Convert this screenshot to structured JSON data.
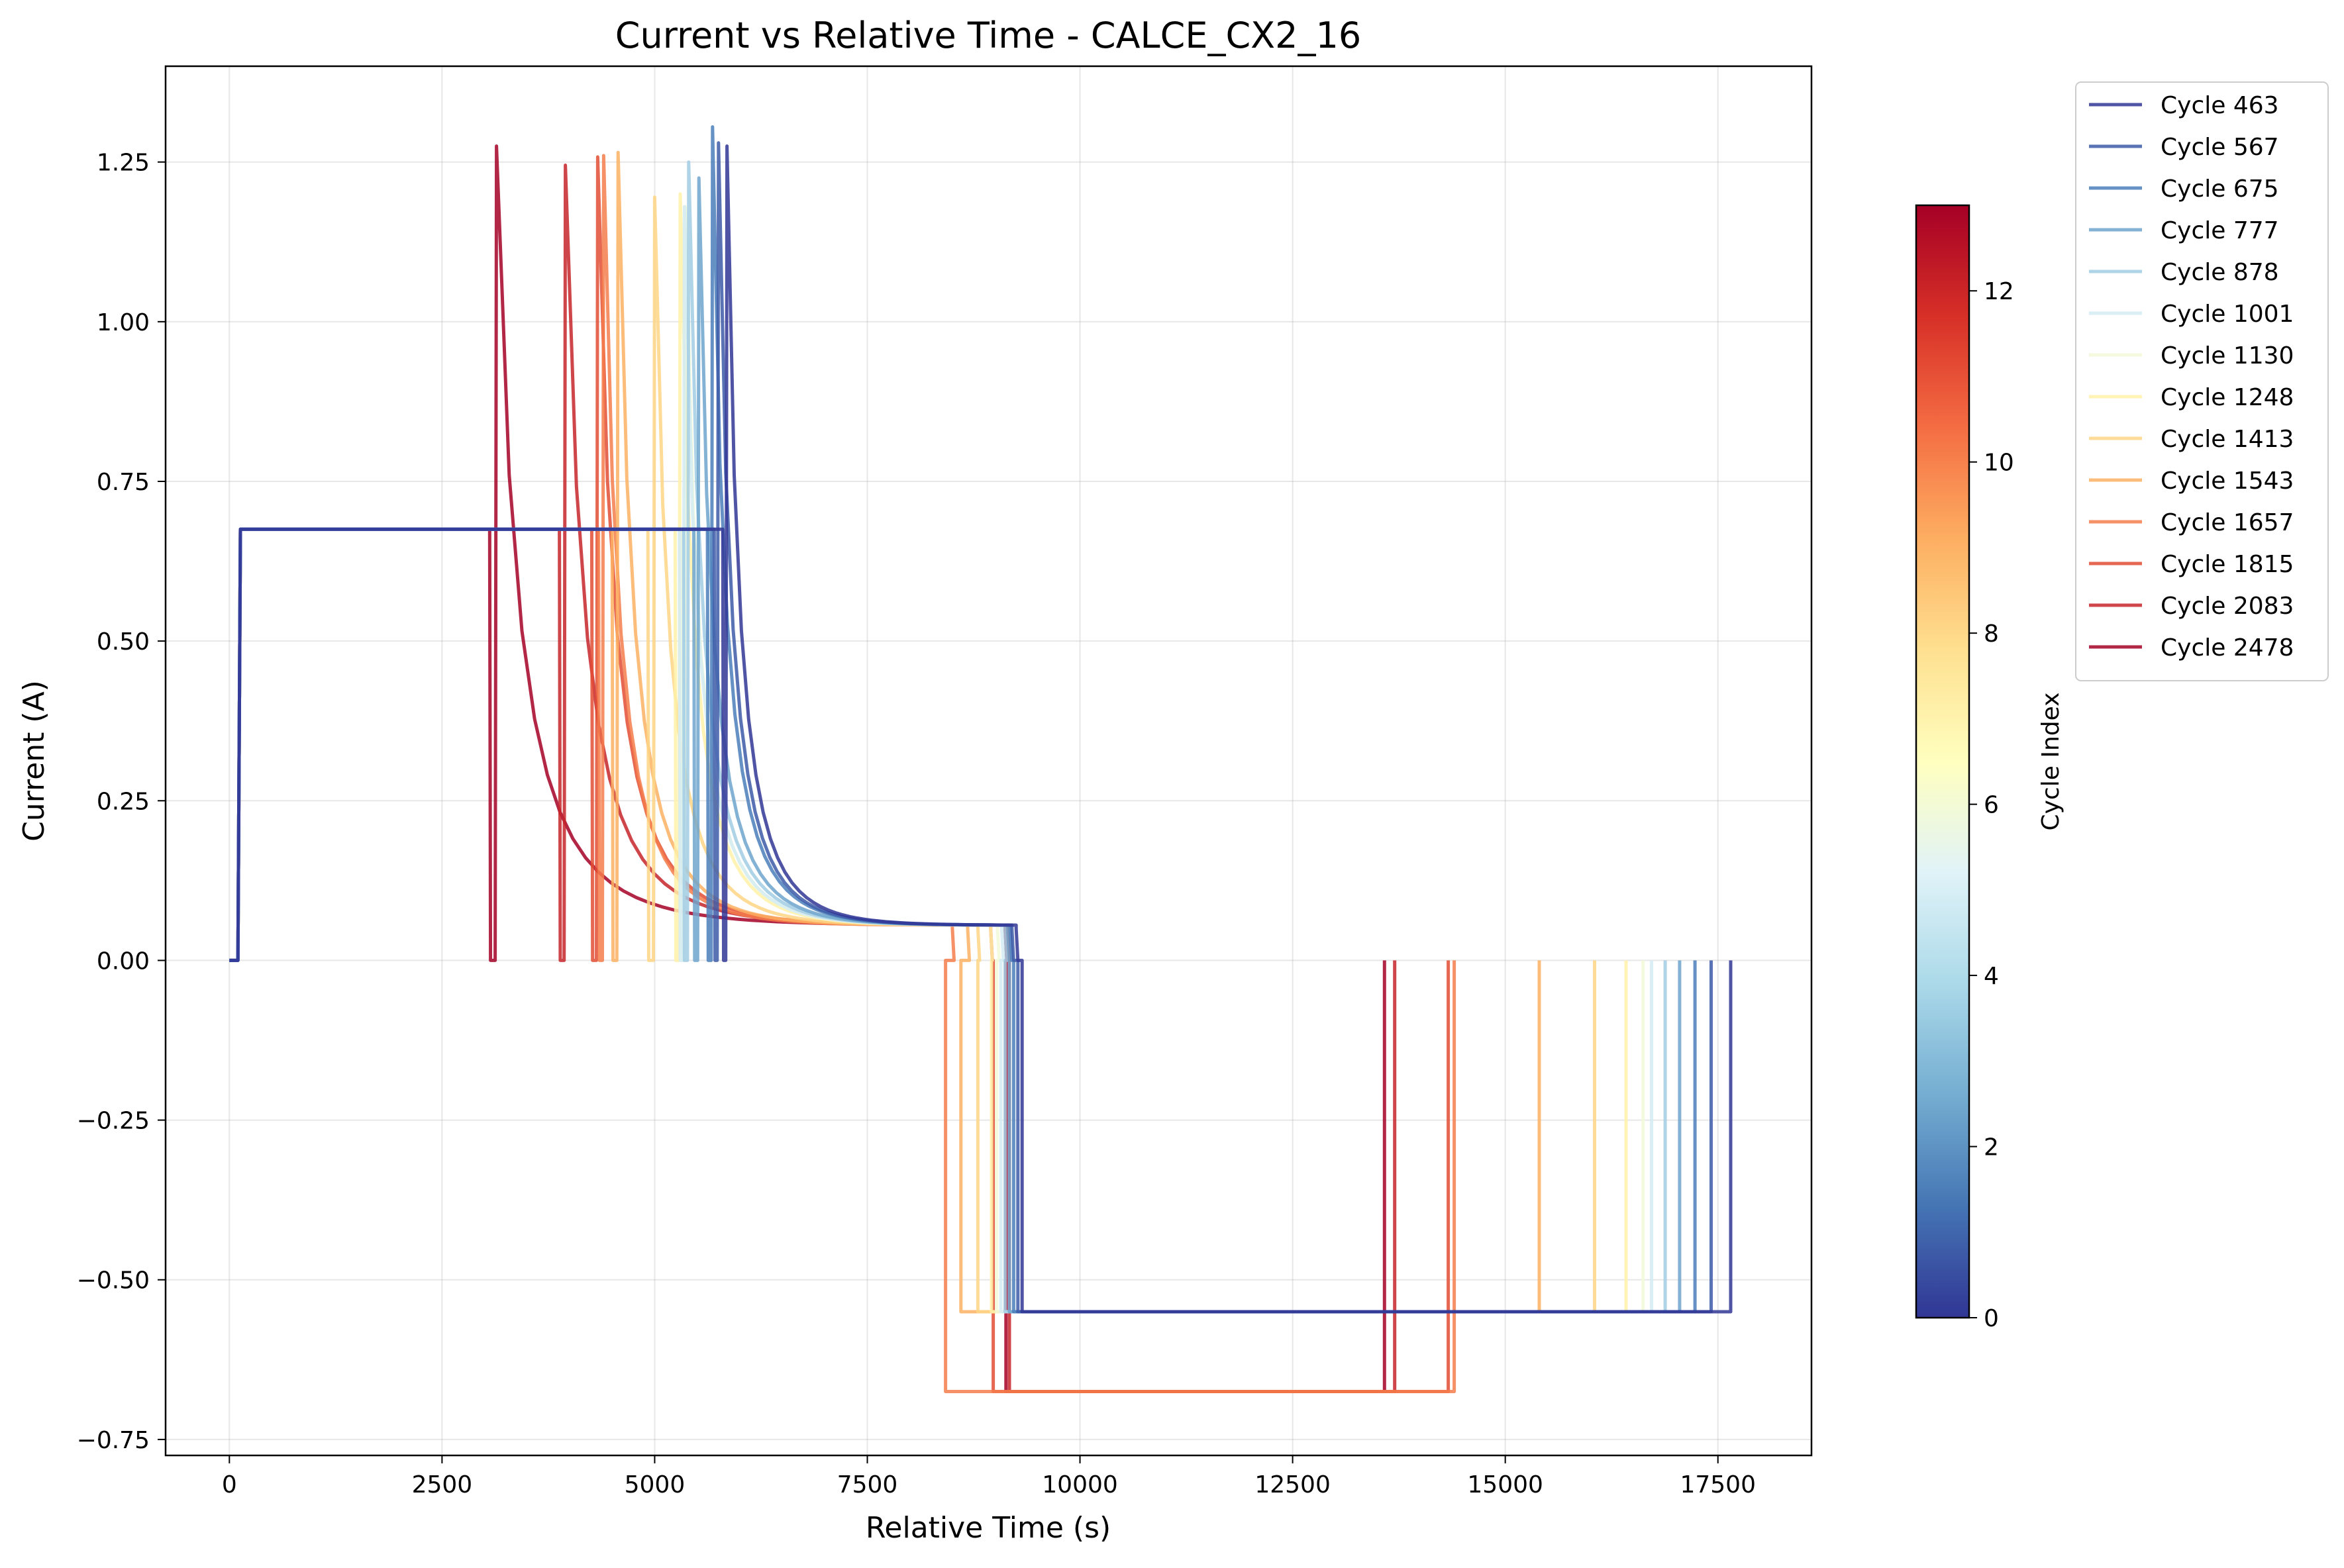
{
  "chart_data": {
    "type": "line",
    "title": "Current vs Relative Time - CALCE_CX2_16",
    "xlabel": "Relative Time (s)",
    "ylabel": "Current (A)",
    "xlim": [
      -750,
      18600
    ],
    "ylim": [
      -0.775,
      1.4
    ],
    "xticks": [
      0,
      2500,
      5000,
      7500,
      10000,
      12500,
      15000,
      17500
    ],
    "xtick_labels": [
      "0",
      "2500",
      "5000",
      "7500",
      "10000",
      "12500",
      "15000",
      "17500"
    ],
    "yticks": [
      -0.75,
      -0.5,
      -0.25,
      0.0,
      0.25,
      0.5,
      0.75,
      1.0,
      1.25
    ],
    "ytick_labels": [
      "−0.75",
      "−0.50",
      "−0.25",
      "0.00",
      "0.25",
      "0.50",
      "0.75",
      "1.00",
      "1.25"
    ],
    "grid": true,
    "legend_position": "outside-top-right",
    "colorbar": {
      "label": "Cycle Index",
      "range": [
        0,
        13
      ],
      "ticks": [
        0,
        2,
        4,
        6,
        8,
        10,
        12
      ],
      "tick_labels": [
        "0",
        "2",
        "4",
        "6",
        "8",
        "10",
        "12"
      ]
    },
    "charge_current": 0.675,
    "series": [
      {
        "name": "Cycle 463",
        "index": 0,
        "color": "#313695",
        "cc_end": 5800,
        "peak_t": 5850,
        "peak": 1.275,
        "cv_end": 9250,
        "dch_start": 9320,
        "dch_current": -0.55,
        "dch_end": 17650
      },
      {
        "name": "Cycle 567",
        "index": 1,
        "color": "#3d5ba8",
        "cc_end": 5700,
        "peak_t": 5750,
        "peak": 1.28,
        "cv_end": 9200,
        "dch_start": 9270,
        "dch_current": -0.55,
        "dch_end": 17420
      },
      {
        "name": "Cycle 675",
        "index": 2,
        "color": "#4a7ebb",
        "cc_end": 5620,
        "peak_t": 5680,
        "peak": 1.305,
        "cv_end": 9180,
        "dch_start": 9220,
        "dch_current": -0.55,
        "dch_end": 17230
      },
      {
        "name": "Cycle 777",
        "index": 3,
        "color": "#6fa5cd",
        "cc_end": 5460,
        "peak_t": 5520,
        "peak": 1.225,
        "cv_end": 9150,
        "dch_start": 9170,
        "dch_current": -0.55,
        "dch_end": 17050
      },
      {
        "name": "Cycle 878",
        "index": 4,
        "color": "#a2cde3",
        "cc_end": 5340,
        "peak_t": 5400,
        "peak": 1.25,
        "cv_end": 9120,
        "dch_start": 9120,
        "dch_current": -0.55,
        "dch_end": 16880
      },
      {
        "name": "Cycle 1001",
        "index": 5,
        "color": "#d3ebf3",
        "cc_end": 5290,
        "peak_t": 5350,
        "peak": 1.18,
        "cv_end": 9080,
        "dch_start": 9070,
        "dch_current": -0.55,
        "dch_end": 16720
      },
      {
        "name": "Cycle 1130",
        "index": 6,
        "color": "#f1f9d7",
        "cc_end": 5300,
        "peak_t": 5360,
        "peak": 1.18,
        "cv_end": 9030,
        "dch_start": 9020,
        "dch_current": -0.55,
        "dch_end": 16620
      },
      {
        "name": "Cycle 1248",
        "index": 7,
        "color": "#fff1a8",
        "cc_end": 5240,
        "peak_t": 5300,
        "peak": 1.2,
        "cv_end": 8950,
        "dch_start": 8960,
        "dch_current": -0.55,
        "dch_end": 16420
      },
      {
        "name": "Cycle 1413",
        "index": 8,
        "color": "#fed686",
        "cc_end": 4920,
        "peak_t": 5000,
        "peak": 1.195,
        "cv_end": 8800,
        "dch_start": 8800,
        "dch_current": -0.55,
        "dch_end": 16050
      },
      {
        "name": "Cycle 1543",
        "index": 9,
        "color": "#fdb163",
        "cc_end": 4500,
        "peak_t": 4570,
        "peak": 1.265,
        "cv_end": 8680,
        "dch_start": 8600,
        "dch_current": -0.55,
        "dch_end": 15400
      },
      {
        "name": "Cycle 1657",
        "index": 10,
        "color": "#f57d4b",
        "cc_end": 4340,
        "peak_t": 4400,
        "peak": 1.26,
        "cv_end": 8500,
        "dch_start": 8420,
        "dch_current": -0.675,
        "dch_end": 14400
      },
      {
        "name": "Cycle 1815",
        "index": 11,
        "color": "#e34d34",
        "cc_end": 4260,
        "peak_t": 4330,
        "peak": 1.258,
        "cv_end": 8950,
        "dch_start": 8980,
        "dch_current": -0.675,
        "dch_end": 14330
      },
      {
        "name": "Cycle 2083",
        "index": 12,
        "color": "#c6242a",
        "cc_end": 3880,
        "peak_t": 3950,
        "peak": 1.245,
        "cv_end": 9150,
        "dch_start": 9170,
        "dch_current": -0.675,
        "dch_end": 13700
      },
      {
        "name": "Cycle 2478",
        "index": 13,
        "color": "#a50026",
        "cc_end": 3060,
        "peak_t": 3140,
        "peak": 1.275,
        "cv_end": 9120,
        "dch_start": 9130,
        "dch_current": -0.675,
        "dch_end": 13580
      }
    ]
  }
}
